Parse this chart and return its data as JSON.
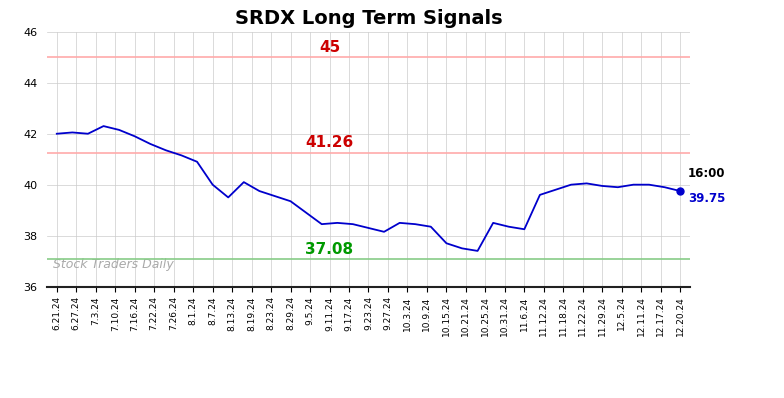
{
  "title": "SRDX Long Term Signals",
  "x_labels": [
    "6.21.24",
    "6.27.24",
    "7.3.24",
    "7.10.24",
    "7.16.24",
    "7.22.24",
    "7.26.24",
    "8.1.24",
    "8.7.24",
    "8.13.24",
    "8.19.24",
    "8.23.24",
    "8.29.24",
    "9.5.24",
    "9.11.24",
    "9.17.24",
    "9.23.24",
    "9.27.24",
    "10.3.24",
    "10.9.24",
    "10.15.24",
    "10.21.24",
    "10.25.24",
    "10.31.24",
    "11.6.24",
    "11.12.24",
    "11.18.24",
    "11.22.24",
    "11.29.24",
    "12.5.24",
    "12.11.24",
    "12.17.24",
    "12.20.24"
  ],
  "y_values": [
    42.0,
    42.05,
    42.0,
    42.3,
    42.15,
    41.9,
    41.6,
    41.35,
    41.15,
    40.9,
    40.0,
    39.5,
    40.1,
    39.75,
    39.55,
    39.35,
    38.9,
    38.45,
    38.5,
    38.45,
    38.3,
    38.15,
    38.5,
    38.45,
    38.35,
    37.7,
    37.5,
    37.4,
    38.5,
    38.35,
    38.25,
    39.6,
    39.8,
    40.0,
    40.05,
    39.95,
    39.9,
    40.0,
    40.0,
    39.9,
    39.75
  ],
  "hline_red_upper": 45.0,
  "hline_red_lower": 41.26,
  "hline_green": 37.08,
  "label_45": "45",
  "label_4126": "41.26",
  "label_3708": "37.08",
  "label_time": "16:00",
  "label_price": "39.75",
  "last_price": 39.75,
  "ylim_min": 36,
  "ylim_max": 46,
  "line_color": "#0000CC",
  "red_line_color": "#FFAAAA",
  "green_line_color": "#88CC88",
  "watermark_text": "Stock Traders Daily",
  "bg_color": "#FFFFFF",
  "grid_color": "#CCCCCC",
  "title_fontsize": 14,
  "label_fontsize": 11,
  "tick_fontsize": 8
}
